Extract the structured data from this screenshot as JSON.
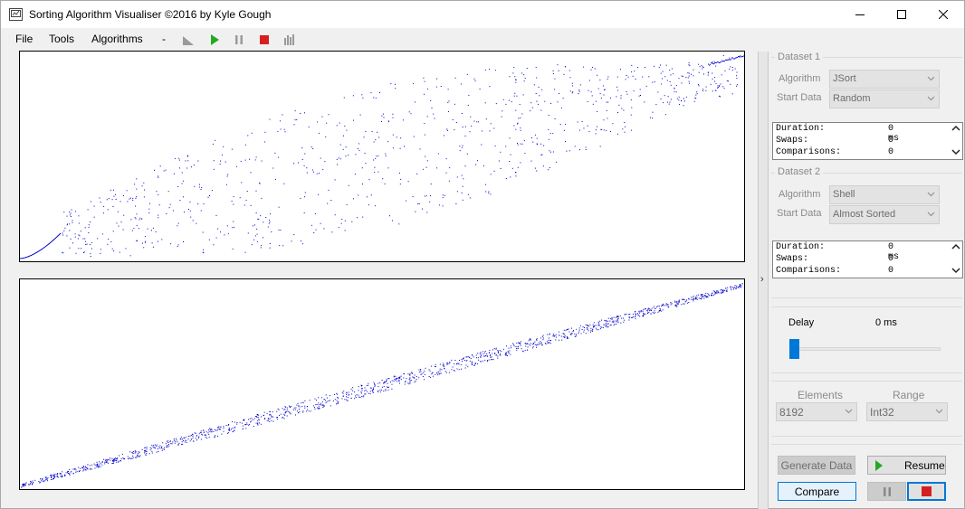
{
  "window": {
    "title": "Sorting Algorithm Visualiser ©2016 by Kyle Gough"
  },
  "menu": {
    "file": "File",
    "tools": "Tools",
    "algorithms": "Algorithms",
    "separator": "-"
  },
  "toolbar": {
    "icons": [
      "chart-icon",
      "play-icon",
      "pause-icon",
      "stop-icon",
      "bars-icon"
    ]
  },
  "dataset1": {
    "group_title": "Dataset 1",
    "algorithm_label": "Algorithm",
    "algorithm_value": "JSort",
    "start_label": "Start Data",
    "start_value": "Random",
    "stats": {
      "duration_label": "Duration:",
      "duration_value": "0 ms",
      "swaps_label": "Swaps:",
      "swaps_value": "0",
      "comparisons_label": "Comparisons:",
      "comparisons_value": "0"
    }
  },
  "dataset2": {
    "group_title": "Dataset 2",
    "algorithm_label": "Algorithm",
    "algorithm_value": "Shell",
    "start_label": "Start Data",
    "start_value": "Almost Sorted",
    "stats": {
      "duration_label": "Duration:",
      "duration_value": "0 ms",
      "swaps_label": "Swaps:",
      "swaps_value": "0",
      "comparisons_label": "Comparisons:",
      "comparisons_value": "0"
    }
  },
  "delay": {
    "label": "Delay",
    "value": "0 ms",
    "slider_fraction": 0
  },
  "elements": {
    "label": "Elements",
    "value": "8192"
  },
  "range": {
    "label": "Range",
    "value": "Int32"
  },
  "buttons": {
    "generate": "Generate Data",
    "resume": "Resume",
    "compare": "Compare"
  },
  "colors": {
    "points": "#0000cc",
    "accent_slider": "#0078d7",
    "play": "#22aa22",
    "stop": "#d42020"
  }
}
